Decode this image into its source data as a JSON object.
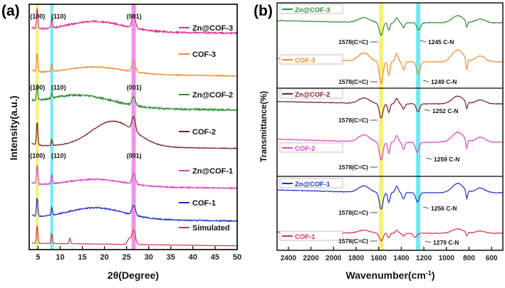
{
  "chart_data": [
    {
      "panel": "(a)",
      "type": "line",
      "title": "",
      "xlabel": "2θ(Degree)",
      "ylabel": "Intensity(a.u.)",
      "xlim": [
        3,
        50
      ],
      "xticks": [
        5,
        10,
        15,
        20,
        25,
        30,
        35,
        40,
        45,
        50
      ],
      "yticks": "none",
      "highlight_bands": [
        {
          "x": 4.8,
          "color": "#f6ef5a"
        },
        {
          "x": 8.1,
          "color": "#57e6ee"
        },
        {
          "x": 26.6,
          "color": "#ee7fe6"
        }
      ],
      "peak_labels": [
        {
          "text": "(100)",
          "x": 4.9,
          "series": "Zn@COF-3"
        },
        {
          "text": "(110)",
          "x": 8.2,
          "series": "Zn@COF-3"
        },
        {
          "text": "(001)",
          "x": 26.7,
          "series": "Zn@COF-3"
        },
        {
          "text": "(100)",
          "x": 4.9,
          "series": "Zn@COF-2"
        },
        {
          "text": "(110)",
          "x": 8.2,
          "series": "Zn@COF-2"
        },
        {
          "text": "(001)",
          "x": 26.7,
          "series": "Zn@COF-2"
        },
        {
          "text": "(100)",
          "x": 4.9,
          "series": "Zn@COF-1"
        },
        {
          "text": "(110)",
          "x": 8.2,
          "series": "Zn@COF-1"
        },
        {
          "text": "(001)",
          "x": 26.7,
          "series": "Zn@COF-1"
        }
      ],
      "series": [
        {
          "name": "Zn@COF-3",
          "color": "#e0308f",
          "peaks": [
            4.8,
            8.1,
            26.6
          ]
        },
        {
          "name": "COF-3",
          "color": "#f08a24",
          "peaks": [
            4.8,
            8.1,
            26.6
          ]
        },
        {
          "name": "Zn@COF-2",
          "color": "#2e8b2e",
          "peaks": [
            4.8,
            8.1,
            26.6
          ]
        },
        {
          "name": "COF-2",
          "color": "#7a1f1f",
          "peaks": [
            4.8,
            8.1,
            26.6
          ]
        },
        {
          "name": "Zn@COF-1",
          "color": "#e03fc8",
          "peaks": [
            4.8,
            8.1,
            26.6
          ]
        },
        {
          "name": "COF-1",
          "color": "#1f2fc8",
          "peaks": [
            4.8,
            8.1,
            26.6
          ]
        },
        {
          "name": "Simulated",
          "color": "#e0304a",
          "peaks": [
            4.8,
            8.1,
            12.2,
            25.6,
            26.6
          ]
        }
      ]
    },
    {
      "panel": "(b)",
      "type": "line",
      "title": "",
      "xlabel": "Wavenumber(cm⁻¹)",
      "xlabel_main": "Wavenumber(cm",
      "xlabel_sup": "-1",
      "xlabel_close": ")",
      "ylabel": "Transmittance(%)",
      "xlim": [
        2500,
        500
      ],
      "xticks": [
        2400,
        2200,
        2000,
        1800,
        1600,
        1400,
        1200,
        1000,
        800,
        600
      ],
      "highlight_bands": [
        {
          "x": 1578,
          "color": "#f6ef5a"
        },
        {
          "x": 1250,
          "color": "#57e6ee"
        }
      ],
      "series": [
        {
          "name": "Zn@COF-3",
          "color": "#2e8b2e",
          "ann_cc": "1578(C=C)",
          "ann_cn": "1245 C-N"
        },
        {
          "name": "COF-3",
          "color": "#f08a24",
          "ann_cc": "1578(C=C)",
          "ann_cn": "1249 C-N"
        },
        {
          "name": "Zn@COF-2",
          "color": "#7a1f1f",
          "ann_cc": "1578(C=C)",
          "ann_cn": "1252 C-N"
        },
        {
          "name": "COF-2",
          "color": "#e03fc8",
          "ann_cc": "1578(C=C)",
          "ann_cn": "1259 C-N"
        },
        {
          "name": "Zn@COF-1",
          "color": "#1f2fc8",
          "ann_cc": "1578(C=C)",
          "ann_cn": "1256 C-N"
        },
        {
          "name": "COF-1",
          "color": "#e0304a",
          "ann_cc": "1578(C=C)",
          "ann_cn": "1279 C-N"
        }
      ]
    }
  ]
}
